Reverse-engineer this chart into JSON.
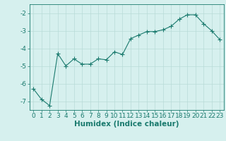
{
  "x": [
    0,
    1,
    2,
    3,
    4,
    5,
    6,
    7,
    8,
    9,
    10,
    11,
    12,
    13,
    14,
    15,
    16,
    17,
    18,
    19,
    20,
    21,
    22,
    23
  ],
  "y": [
    -6.3,
    -6.9,
    -7.25,
    -4.3,
    -5.0,
    -4.6,
    -4.9,
    -4.9,
    -4.6,
    -4.65,
    -4.2,
    -4.35,
    -3.45,
    -3.25,
    -3.05,
    -3.05,
    -2.95,
    -2.75,
    -2.35,
    -2.1,
    -2.1,
    -2.6,
    -3.0,
    -3.5
  ],
  "line_color": "#1a7a6e",
  "marker": "+",
  "marker_size": 4,
  "bg_color": "#d6f0ee",
  "grid_color": "#b8dbd8",
  "tick_color": "#1a7a6e",
  "label_color": "#1a7a6e",
  "xlabel": "Humidex (Indice chaleur)",
  "ylim": [
    -7.5,
    -1.5
  ],
  "yticks": [
    -7,
    -6,
    -5,
    -4,
    -3,
    -2
  ],
  "xlim": [
    -0.5,
    23.5
  ],
  "xticks": [
    0,
    1,
    2,
    3,
    4,
    5,
    6,
    7,
    8,
    9,
    10,
    11,
    12,
    13,
    14,
    15,
    16,
    17,
    18,
    19,
    20,
    21,
    22,
    23
  ],
  "font_size": 6.5,
  "xlabel_fontsize": 7.5
}
